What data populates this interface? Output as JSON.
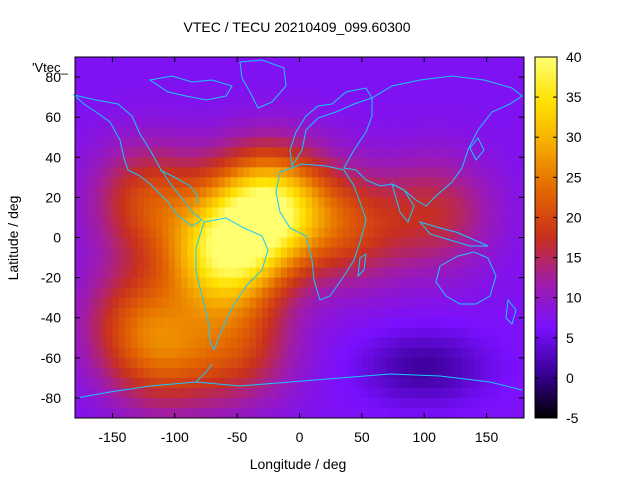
{
  "chart_data": {
    "type": "heatmap",
    "title": "VTEC / TECU 20210409_099.60300",
    "xlabel": "Longitude / deg",
    "ylabel": "Latitude / deg",
    "key_label": "'Vtec_",
    "xlim": [
      -180,
      180
    ],
    "ylim": [
      -90,
      90
    ],
    "x_ticks": [
      -150,
      -100,
      -50,
      0,
      50,
      100,
      150
    ],
    "y_ticks": [
      -80,
      -60,
      -40,
      -20,
      0,
      20,
      40,
      60,
      80
    ],
    "colorbar": {
      "min": -5,
      "max": 40,
      "ticks": [
        -5,
        0,
        5,
        10,
        15,
        20,
        25,
        30,
        35,
        40
      ]
    },
    "field_peaks": [
      {
        "lon": -25,
        "lat": 15,
        "value": 37
      },
      {
        "lon": -60,
        "lat": -10,
        "value": 33
      },
      {
        "lon": -120,
        "lat": 18,
        "value": 20
      },
      {
        "lon": 40,
        "lat": 5,
        "value": 18
      },
      {
        "lon": 110,
        "lat": 12,
        "value": 16
      },
      {
        "lon": -110,
        "lat": -60,
        "value": 18
      },
      {
        "lon": -50,
        "lat": -55,
        "value": 18
      },
      {
        "lon": -130,
        "lat": -40,
        "value": 17
      }
    ],
    "field_background": 7,
    "field_minimum": {
      "lon": 100,
      "lat": -65,
      "value": 1
    },
    "colors": {
      "palette": [
        "#000000",
        "#3a0097",
        "#7a10ff",
        "#a01ca8",
        "#c8301e",
        "#e26400",
        "#f5a800",
        "#ffe100",
        "#ffff70"
      ],
      "coastline": "#19c8ff"
    }
  }
}
